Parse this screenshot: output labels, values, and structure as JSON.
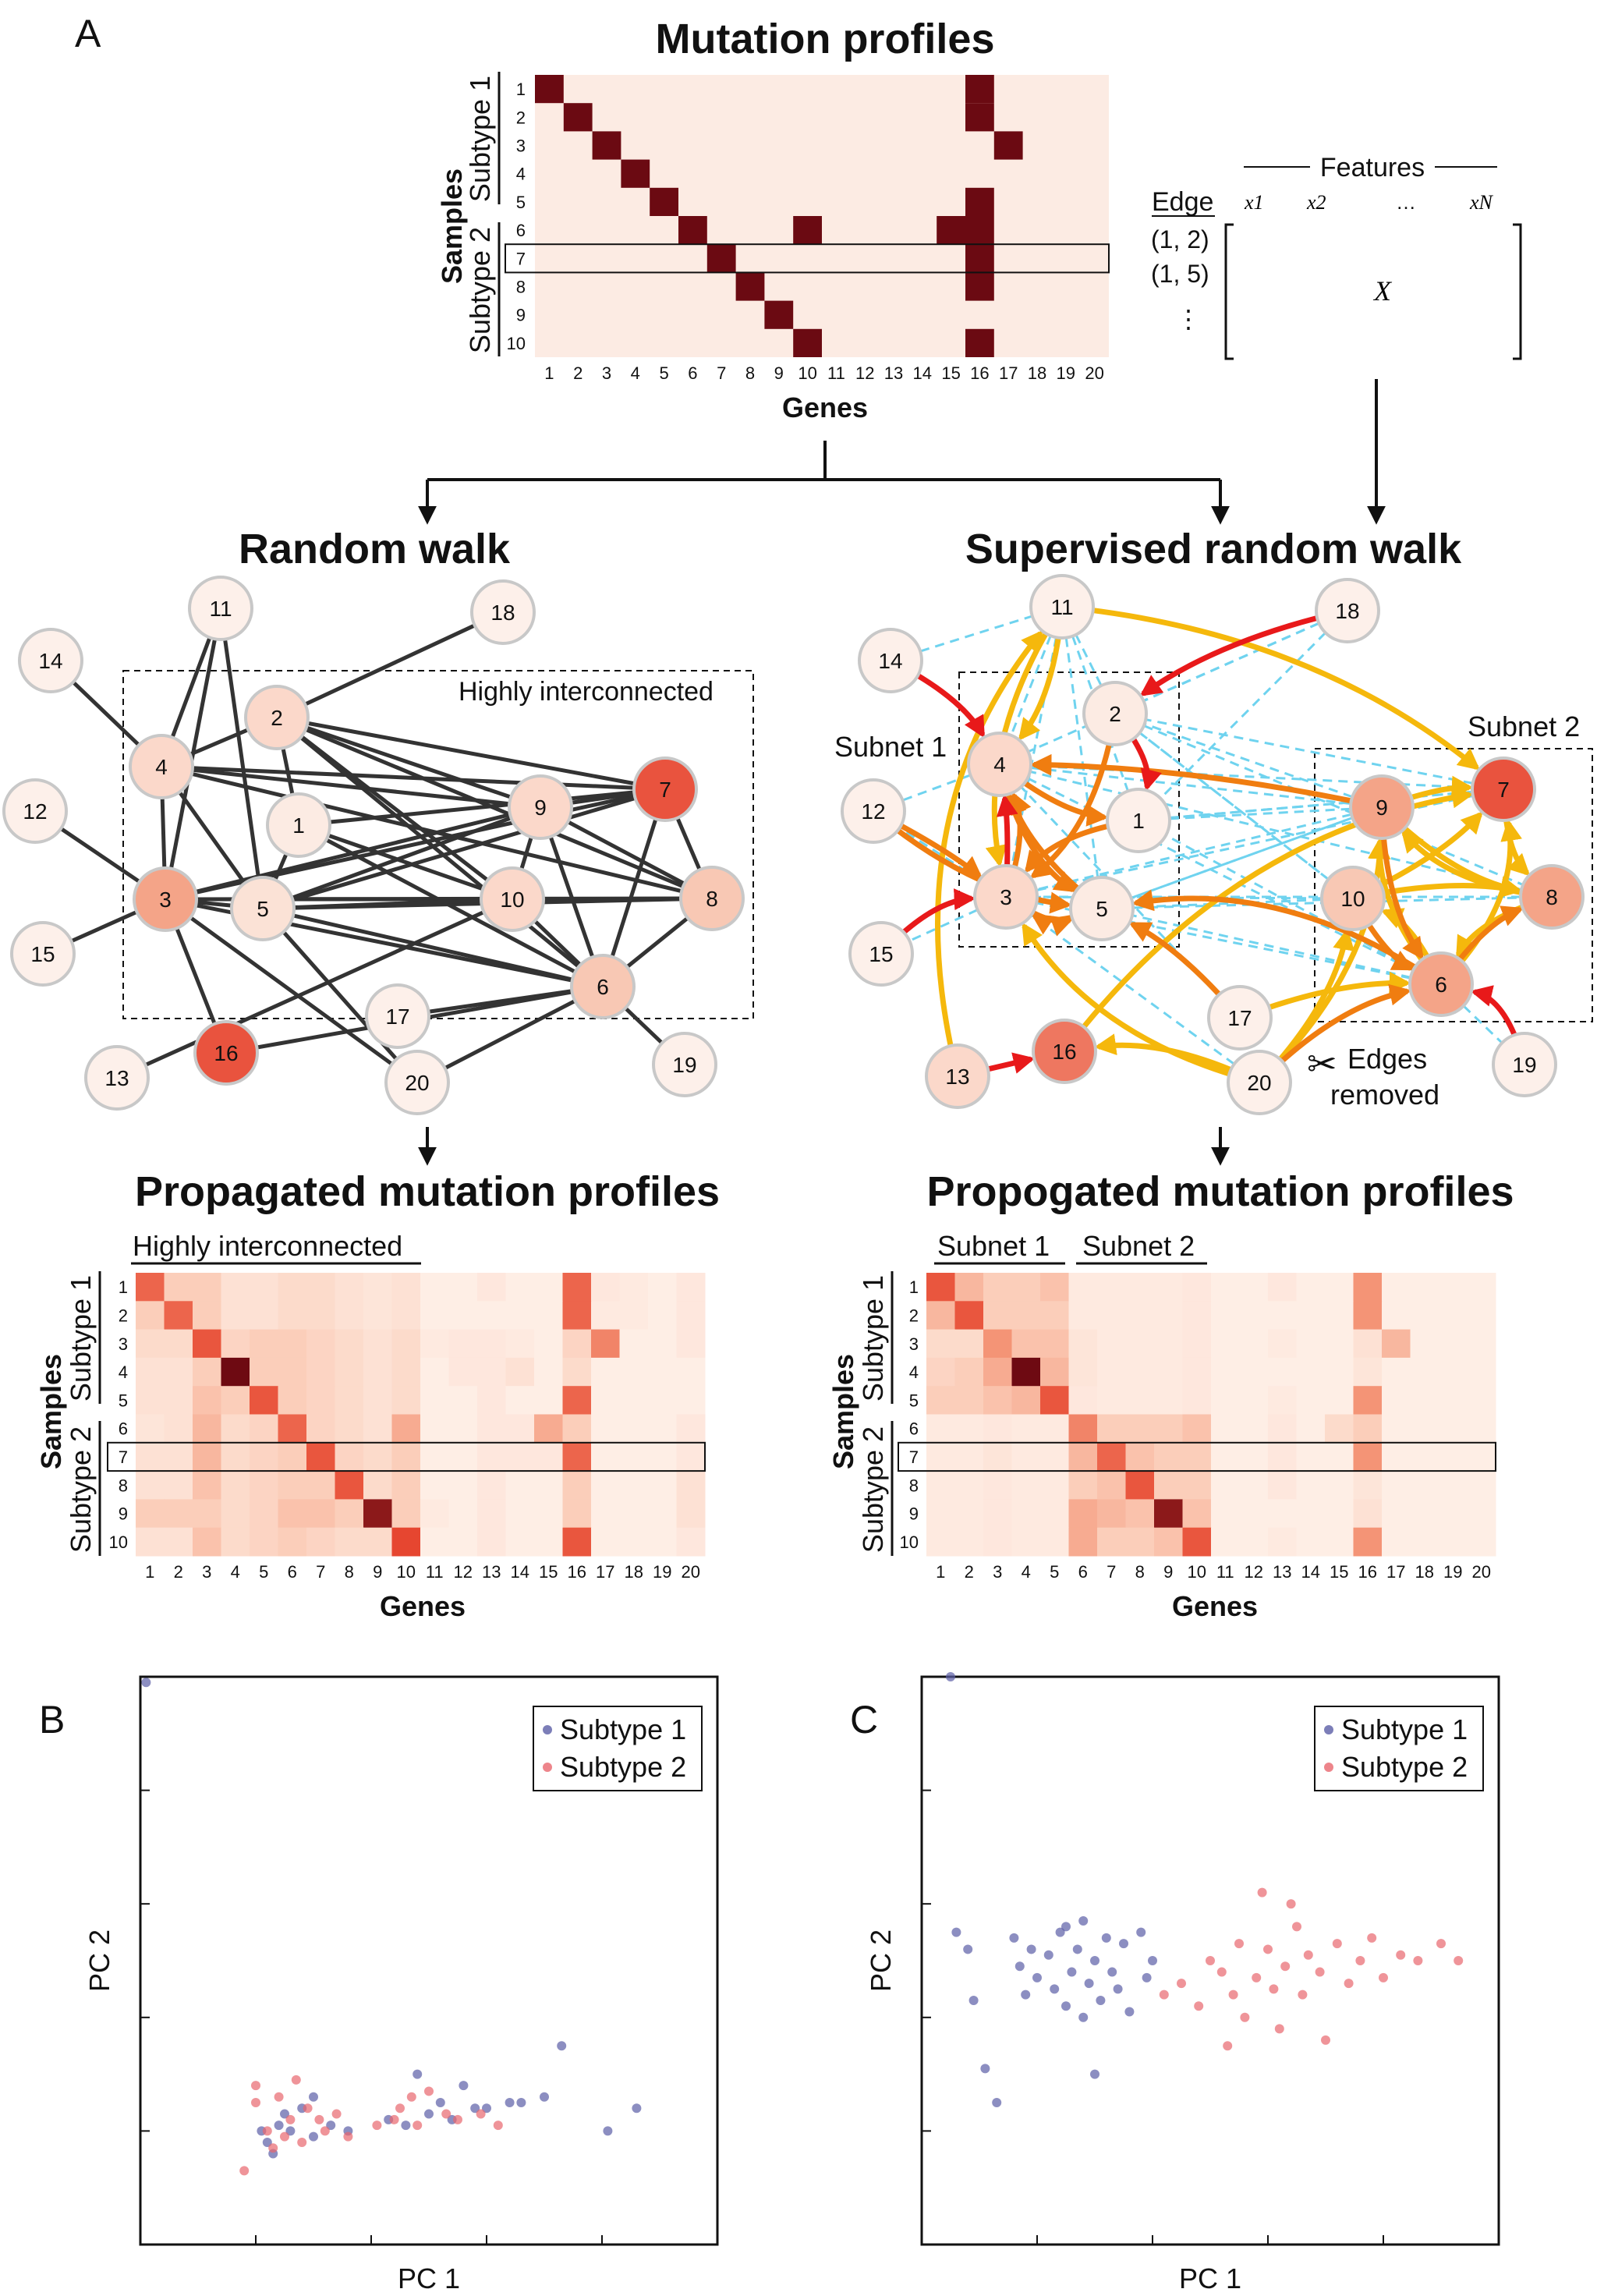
{
  "panels": {
    "a": "A",
    "b": "B",
    "c": "C"
  },
  "mutation": {
    "title": "Mutation profiles",
    "samples_label": "Samples",
    "genes_label": "Genes",
    "subtype1": "Subtype 1",
    "subtype2": "Subtype 2",
    "row_labels": [
      "1",
      "2",
      "3",
      "4",
      "5",
      "6",
      "7",
      "8",
      "9",
      "10"
    ],
    "col_labels": [
      "1",
      "2",
      "3",
      "4",
      "5",
      "6",
      "7",
      "8",
      "9",
      "10",
      "11",
      "12",
      "13",
      "14",
      "15",
      "16",
      "17",
      "18",
      "19",
      "20"
    ]
  },
  "features": {
    "header": "Features",
    "edge_label": "Edge",
    "x1": "x1",
    "x2": "x2",
    "dots": "…",
    "xn": "xN",
    "edge1": "(1, 2)",
    "edge2": "(1, 5)",
    "vdots": "⋮",
    "matrix_label": "X"
  },
  "random_walk": {
    "title": "Random walk",
    "box_label": "Highly interconnected",
    "node_labels": [
      "1",
      "2",
      "3",
      "4",
      "5",
      "6",
      "7",
      "8",
      "9",
      "10",
      "11",
      "12",
      "13",
      "14",
      "15",
      "16",
      "17",
      "18",
      "19",
      "20"
    ]
  },
  "supervised_walk": {
    "title": "Supervised random walk",
    "subnet1": "Subnet 1",
    "subnet2": "Subnet 2",
    "edges_removed_1": "Edges",
    "edges_removed_2": "removed",
    "node_labels": [
      "1",
      "2",
      "3",
      "4",
      "5",
      "6",
      "7",
      "8",
      "9",
      "10",
      "11",
      "12",
      "13",
      "14",
      "15",
      "16",
      "17",
      "18",
      "19",
      "20"
    ]
  },
  "propagated_left": {
    "title": "Propagated mutation profiles",
    "bracket": "Highly interconnected",
    "samples_label": "Samples",
    "genes_label": "Genes",
    "subtype1": "Subtype 1",
    "subtype2": "Subtype 2"
  },
  "propagated_right": {
    "title": "Propogated mutation profiles",
    "bracket1": "Subnet 1",
    "bracket2": "Subnet 2",
    "samples_label": "Samples",
    "genes_label": "Genes",
    "subtype1": "Subtype 1",
    "subtype2": "Subtype 2"
  },
  "chart_data": [
    {
      "type": "scatter",
      "panel": "B",
      "xlabel": "PC 1",
      "ylabel": "PC 2",
      "legend": "top-right",
      "xlim": [
        0,
        10
      ],
      "ylim": [
        0,
        10
      ],
      "series": [
        {
          "name": "Subtype 1",
          "color": "#5b5ea6",
          "points": [
            [
              0.1,
              9.9
            ],
            [
              2.1,
              2.0
            ],
            [
              2.2,
              1.8
            ],
            [
              2.4,
              2.1
            ],
            [
              2.5,
              2.3
            ],
            [
              2.6,
              2.0
            ],
            [
              2.8,
              2.4
            ],
            [
              3.0,
              1.9
            ],
            [
              3.3,
              2.1
            ],
            [
              3.6,
              2.0
            ],
            [
              4.3,
              2.2
            ],
            [
              4.6,
              2.1
            ],
            [
              4.8,
              3.0
            ],
            [
              5.0,
              2.3
            ],
            [
              5.2,
              2.5
            ],
            [
              5.4,
              2.2
            ],
            [
              5.6,
              2.8
            ],
            [
              5.8,
              2.4
            ],
            [
              6.0,
              2.4
            ],
            [
              6.4,
              2.5
            ],
            [
              6.6,
              2.5
            ],
            [
              7.0,
              2.6
            ],
            [
              7.3,
              3.5
            ],
            [
              8.1,
              2.0
            ],
            [
              8.6,
              2.4
            ],
            [
              3.0,
              2.6
            ],
            [
              2.3,
              1.6
            ]
          ]
        },
        {
          "name": "Subtype 2",
          "color": "#e8676e",
          "points": [
            [
              1.8,
              1.3
            ],
            [
              2.0,
              2.5
            ],
            [
              2.0,
              2.8
            ],
            [
              2.2,
              2.0
            ],
            [
              2.3,
              1.7
            ],
            [
              2.4,
              2.6
            ],
            [
              2.5,
              1.9
            ],
            [
              2.6,
              2.2
            ],
            [
              2.7,
              2.9
            ],
            [
              2.8,
              1.8
            ],
            [
              3.1,
              2.2
            ],
            [
              3.2,
              2.0
            ],
            [
              3.4,
              2.3
            ],
            [
              3.6,
              1.9
            ],
            [
              4.1,
              2.1
            ],
            [
              4.4,
              2.2
            ],
            [
              4.5,
              2.4
            ],
            [
              4.8,
              2.1
            ],
            [
              5.0,
              2.7
            ],
            [
              5.3,
              2.3
            ],
            [
              5.5,
              2.2
            ],
            [
              5.9,
              2.3
            ],
            [
              6.2,
              2.1
            ],
            [
              4.7,
              2.6
            ],
            [
              2.9,
              2.4
            ]
          ]
        }
      ]
    },
    {
      "type": "scatter",
      "panel": "C",
      "xlabel": "PC 1",
      "ylabel": "PC 2",
      "legend": "top-right",
      "xlim": [
        0,
        10
      ],
      "ylim": [
        0,
        10
      ],
      "series": [
        {
          "name": "Subtype 1",
          "color": "#5b5ea6",
          "points": [
            [
              0.5,
              10.0
            ],
            [
              0.6,
              5.5
            ],
            [
              0.8,
              5.2
            ],
            [
              0.9,
              4.3
            ],
            [
              1.1,
              3.1
            ],
            [
              1.6,
              5.4
            ],
            [
              1.7,
              4.9
            ],
            [
              1.8,
              4.4
            ],
            [
              1.9,
              5.2
            ],
            [
              2.0,
              4.7
            ],
            [
              2.2,
              5.1
            ],
            [
              2.3,
              4.5
            ],
            [
              2.4,
              5.5
            ],
            [
              2.5,
              4.2
            ],
            [
              2.6,
              4.8
            ],
            [
              2.7,
              5.2
            ],
            [
              2.8,
              5.7
            ],
            [
              2.9,
              4.6
            ],
            [
              3.0,
              5.0
            ],
            [
              3.1,
              4.3
            ],
            [
              3.2,
              5.4
            ],
            [
              3.3,
              4.8
            ],
            [
              3.5,
              5.3
            ],
            [
              3.6,
              4.1
            ],
            [
              3.8,
              5.5
            ],
            [
              3.9,
              4.7
            ],
            [
              4.0,
              5.0
            ],
            [
              2.8,
              4.0
            ],
            [
              3.4,
              4.5
            ],
            [
              3.0,
              3.0
            ],
            [
              1.3,
              2.5
            ],
            [
              2.5,
              5.6
            ]
          ]
        },
        {
          "name": "Subtype 2",
          "color": "#e8676e",
          "points": [
            [
              4.2,
              4.4
            ],
            [
              4.5,
              4.6
            ],
            [
              4.8,
              4.2
            ],
            [
              5.0,
              5.0
            ],
            [
              5.2,
              4.8
            ],
            [
              5.4,
              4.4
            ],
            [
              5.5,
              5.3
            ],
            [
              5.6,
              4.0
            ],
            [
              5.8,
              4.7
            ],
            [
              6.0,
              5.2
            ],
            [
              6.1,
              4.5
            ],
            [
              6.2,
              3.8
            ],
            [
              6.3,
              4.9
            ],
            [
              6.5,
              5.6
            ],
            [
              6.6,
              4.4
            ],
            [
              6.7,
              5.1
            ],
            [
              6.9,
              4.8
            ],
            [
              7.0,
              3.6
            ],
            [
              7.2,
              5.3
            ],
            [
              7.4,
              4.6
            ],
            [
              7.6,
              5.0
            ],
            [
              7.8,
              5.4
            ],
            [
              8.0,
              4.7
            ],
            [
              8.3,
              5.1
            ],
            [
              8.6,
              5.0
            ],
            [
              9.0,
              5.3
            ],
            [
              9.3,
              5.0
            ],
            [
              5.3,
              3.5
            ],
            [
              6.4,
              6.0
            ],
            [
              5.9,
              6.2
            ]
          ]
        }
      ]
    }
  ]
}
